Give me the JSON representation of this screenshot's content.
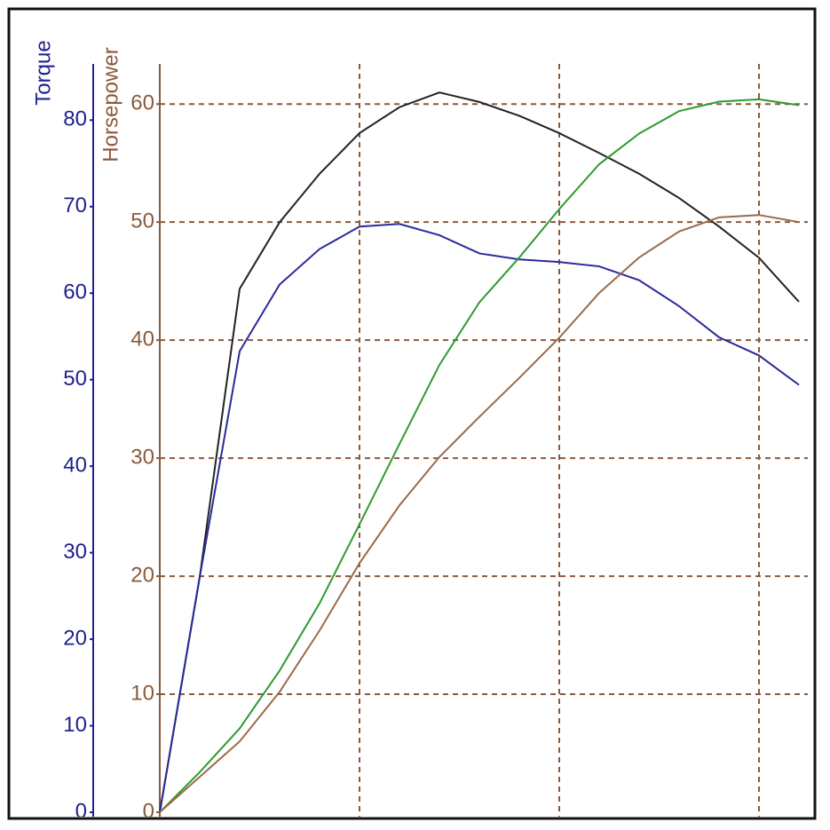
{
  "chart_data": {
    "type": "line",
    "y2label": "Torque",
    "ylabel": "Horsepower",
    "categories": [
      null,
      null,
      null,
      null,
      null,
      null,
      null,
      null,
      null,
      null,
      null,
      null,
      null,
      null,
      null,
      null,
      null
    ],
    "ylim": [
      0,
      63.4
    ],
    "yticks": [
      0,
      10,
      20,
      30,
      40,
      50,
      60
    ],
    "y2lim": [
      0,
      86.5
    ],
    "y2ticks": [
      0,
      10,
      20,
      30,
      40,
      50,
      60,
      70,
      80
    ],
    "grid": true,
    "series": [
      {
        "color": "#222222",
        "axis": "y2",
        "values": [
          0,
          27.2,
          60.5,
          68.2,
          73.8,
          78.5,
          81.5,
          83.2,
          82.1,
          80.5,
          78.5,
          76.2,
          73.8,
          71.0,
          67.7,
          64.1,
          59.0
        ]
      },
      {
        "color": "#2a2a9a",
        "axis": "y2",
        "values": [
          0,
          27.2,
          53.3,
          61.0,
          65.1,
          67.7,
          68.0,
          66.7,
          64.6,
          63.9,
          63.6,
          63.1,
          61.5,
          58.5,
          54.9,
          52.8,
          49.4
        ]
      },
      {
        "color": "#2f9a2f",
        "values": [
          0,
          3.4,
          7.1,
          12.0,
          17.7,
          24.4,
          31.2,
          37.9,
          43.2,
          47.0,
          51.1,
          54.9,
          57.5,
          59.4,
          60.2,
          60.4,
          59.9
        ]
      },
      {
        "color": "#9a6a4a",
        "values": [
          0,
          3.0,
          6.0,
          10.2,
          15.4,
          21.1,
          26.0,
          30.1,
          33.5,
          36.8,
          40.2,
          44.0,
          47.0,
          49.2,
          50.4,
          50.6,
          50.0
        ]
      }
    ]
  }
}
